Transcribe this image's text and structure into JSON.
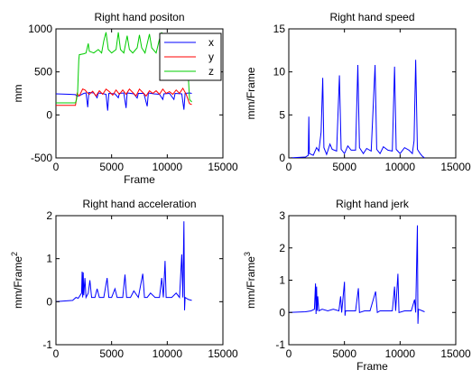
{
  "chart_data": [
    {
      "type": "line",
      "title": "Right hand positon",
      "xlabel": "Frame",
      "ylabel": "mm",
      "ylabel_sup": "",
      "xlim": [
        0,
        15000
      ],
      "ylim": [
        -500,
        1000
      ],
      "xticks": [
        "0",
        "5000",
        "10000",
        "15000"
      ],
      "yticks": [
        "-500",
        "0",
        "500",
        "1000"
      ],
      "grid": false,
      "legend": "top-right",
      "series": [
        {
          "name": "x",
          "color": "#0000ff",
          "points": [
            [
              0,
              245
            ],
            [
              1200,
              240
            ],
            [
              1750,
              235
            ],
            [
              1900,
              215
            ],
            [
              2200,
              230
            ],
            [
              2500,
              250
            ],
            [
              2700,
              255
            ],
            [
              2850,
              90
            ],
            [
              2950,
              260
            ],
            [
              3400,
              255
            ],
            [
              3700,
              200
            ],
            [
              3800,
              255
            ],
            [
              4100,
              250
            ],
            [
              4500,
              240
            ],
            [
              4650,
              50
            ],
            [
              4750,
              250
            ],
            [
              5300,
              245
            ],
            [
              5600,
              200
            ],
            [
              5700,
              250
            ],
            [
              6100,
              255
            ],
            [
              6300,
              80
            ],
            [
              6400,
              255
            ],
            [
              7000,
              245
            ],
            [
              7300,
              195
            ],
            [
              7400,
              250
            ],
            [
              7900,
              250
            ],
            [
              8200,
              100
            ],
            [
              8300,
              255
            ],
            [
              8800,
              245
            ],
            [
              9300,
              240
            ],
            [
              9600,
              180
            ],
            [
              9700,
              245
            ],
            [
              10200,
              250
            ],
            [
              10600,
              180
            ],
            [
              10700,
              250
            ],
            [
              11300,
              245
            ],
            [
              11500,
              60
            ],
            [
              11600,
              250
            ],
            [
              12000,
              255
            ],
            [
              12200,
              250
            ]
          ]
        },
        {
          "name": "y",
          "color": "#ff0000",
          "points": [
            [
              0,
              110
            ],
            [
              1750,
              110
            ],
            [
              1800,
              150
            ],
            [
              1900,
              250
            ],
            [
              2100,
              220
            ],
            [
              2400,
              300
            ],
            [
              2600,
              290
            ],
            [
              2800,
              260
            ],
            [
              3000,
              240
            ],
            [
              3300,
              275
            ],
            [
              3600,
              220
            ],
            [
              3900,
              280
            ],
            [
              4200,
              240
            ],
            [
              4500,
              300
            ],
            [
              4800,
              270
            ],
            [
              5100,
              230
            ],
            [
              5400,
              290
            ],
            [
              5700,
              240
            ],
            [
              6000,
              290
            ],
            [
              6300,
              240
            ],
            [
              6600,
              300
            ],
            [
              6900,
              260
            ],
            [
              7200,
              220
            ],
            [
              7500,
              300
            ],
            [
              7800,
              260
            ],
            [
              8100,
              220
            ],
            [
              8400,
              280
            ],
            [
              8700,
              250
            ],
            [
              9000,
              280
            ],
            [
              9300,
              240
            ],
            [
              9600,
              300
            ],
            [
              9900,
              250
            ],
            [
              10200,
              270
            ],
            [
              10500,
              240
            ],
            [
              10800,
              290
            ],
            [
              11100,
              250
            ],
            [
              11400,
              310
            ],
            [
              11700,
              240
            ],
            [
              12000,
              130
            ],
            [
              12200,
              120
            ]
          ]
        },
        {
          "name": "z",
          "color": "#00cc00",
          "points": [
            [
              0,
              140
            ],
            [
              1750,
              140
            ],
            [
              1850,
              180
            ],
            [
              1950,
              260
            ],
            [
              2050,
              640
            ],
            [
              2100,
              700
            ],
            [
              2500,
              710
            ],
            [
              2700,
              720
            ],
            [
              2900,
              830
            ],
            [
              3000,
              740
            ],
            [
              3400,
              720
            ],
            [
              3800,
              760
            ],
            [
              4100,
              720
            ],
            [
              4300,
              860
            ],
            [
              4500,
              960
            ],
            [
              4700,
              760
            ],
            [
              5000,
              720
            ],
            [
              5400,
              760
            ],
            [
              5600,
              960
            ],
            [
              5800,
              760
            ],
            [
              6100,
              720
            ],
            [
              6400,
              920
            ],
            [
              6600,
              760
            ],
            [
              6900,
              720
            ],
            [
              7300,
              780
            ],
            [
              7500,
              930
            ],
            [
              7700,
              780
            ],
            [
              8000,
              720
            ],
            [
              8400,
              940
            ],
            [
              8600,
              780
            ],
            [
              9000,
              720
            ],
            [
              9300,
              880
            ],
            [
              9500,
              960
            ],
            [
              9700,
              780
            ],
            [
              10100,
              760
            ],
            [
              10500,
              880
            ],
            [
              10700,
              780
            ],
            [
              11000,
              720
            ],
            [
              11400,
              760
            ],
            [
              11600,
              720
            ],
            [
              11900,
              420
            ],
            [
              12000,
              180
            ],
            [
              12200,
              150
            ]
          ]
        }
      ]
    },
    {
      "type": "line",
      "title": "Right hand speed",
      "xlabel": "",
      "ylabel": "mm/Frame",
      "ylabel_sup": "",
      "xlim": [
        0,
        15000
      ],
      "ylim": [
        0,
        15
      ],
      "xticks": [
        "0",
        "5000",
        "10000",
        "15000"
      ],
      "yticks": [
        "0",
        "5",
        "10",
        "15"
      ],
      "grid": false,
      "legend": "none",
      "series": [
        {
          "color": "#0000ff",
          "points": [
            [
              0,
              0
            ],
            [
              1500,
              0.1
            ],
            [
              1750,
              0.3
            ],
            [
              1800,
              4.8
            ],
            [
              1850,
              0.5
            ],
            [
              2200,
              0.3
            ],
            [
              2500,
              1.2
            ],
            [
              2700,
              0.8
            ],
            [
              2900,
              3
            ],
            [
              3050,
              9.3
            ],
            [
              3150,
              1.2
            ],
            [
              3400,
              0.4
            ],
            [
              3700,
              1.6
            ],
            [
              3900,
              1
            ],
            [
              4300,
              0.8
            ],
            [
              4550,
              9.6
            ],
            [
              4700,
              1
            ],
            [
              5000,
              0.5
            ],
            [
              5300,
              1.4
            ],
            [
              5600,
              0.9
            ],
            [
              6000,
              0.9
            ],
            [
              6200,
              10.8
            ],
            [
              6350,
              1.2
            ],
            [
              6700,
              0.5
            ],
            [
              7000,
              1.1
            ],
            [
              7400,
              0.8
            ],
            [
              7750,
              10.8
            ],
            [
              7900,
              1
            ],
            [
              8200,
              0.5
            ],
            [
              8500,
              1.3
            ],
            [
              8900,
              0.9
            ],
            [
              9300,
              0.8
            ],
            [
              9500,
              10.6
            ],
            [
              9650,
              1
            ],
            [
              10000,
              0.5
            ],
            [
              10400,
              1.2
            ],
            [
              10800,
              0.9
            ],
            [
              11100,
              0.5
            ],
            [
              11250,
              2
            ],
            [
              11400,
              11.4
            ],
            [
              11550,
              1
            ],
            [
              11800,
              0.5
            ],
            [
              12000,
              0.2
            ],
            [
              12200,
              0
            ]
          ]
        }
      ]
    },
    {
      "type": "line",
      "title": "Right hand acceleration",
      "xlabel": "",
      "ylabel": "mm/Frame",
      "ylabel_sup": "2",
      "xlim": [
        0,
        15000
      ],
      "ylim": [
        -1,
        2
      ],
      "xticks": [
        "0",
        "5000",
        "10000",
        "15000"
      ],
      "yticks": [
        "-1",
        "0",
        "1",
        "2"
      ],
      "grid": false,
      "legend": "none",
      "series": [
        {
          "color": "#0000ff",
          "points": [
            [
              0,
              0
            ],
            [
              1500,
              0.03
            ],
            [
              1800,
              0.1
            ],
            [
              2000,
              0.08
            ],
            [
              2300,
              0.2
            ],
            [
              2350,
              0.7
            ],
            [
              2400,
              0.1
            ],
            [
              2450,
              0.68
            ],
            [
              2500,
              0.15
            ],
            [
              2600,
              0.55
            ],
            [
              2700,
              0.1
            ],
            [
              2900,
              0.2
            ],
            [
              3050,
              0.5
            ],
            [
              3200,
              0.1
            ],
            [
              3500,
              0.1
            ],
            [
              3700,
              0.3
            ],
            [
              3900,
              0.1
            ],
            [
              4300,
              0.1
            ],
            [
              4600,
              0.55
            ],
            [
              4750,
              0.1
            ],
            [
              5000,
              0.1
            ],
            [
              5300,
              0.3
            ],
            [
              5500,
              0.1
            ],
            [
              6000,
              0.1
            ],
            [
              6200,
              0.63
            ],
            [
              6350,
              0.1
            ],
            [
              6700,
              0.1
            ],
            [
              7000,
              0.25
            ],
            [
              7400,
              0.1
            ],
            [
              7800,
              0.65
            ],
            [
              7950,
              0.1
            ],
            [
              8200,
              0.1
            ],
            [
              8500,
              0.2
            ],
            [
              8900,
              0.1
            ],
            [
              9300,
              0.1
            ],
            [
              9500,
              0.55
            ],
            [
              9650,
              0.1
            ],
            [
              9800,
              0.95
            ],
            [
              9900,
              0.1
            ],
            [
              10400,
              0.1
            ],
            [
              10800,
              0.2
            ],
            [
              11100,
              0.1
            ],
            [
              11300,
              1.1
            ],
            [
              11400,
              0.1
            ],
            [
              11500,
              1.87
            ],
            [
              11550,
              -0.2
            ],
            [
              11600,
              0.1
            ],
            [
              11900,
              0.05
            ],
            [
              12200,
              0.03
            ]
          ]
        }
      ]
    },
    {
      "type": "line",
      "title": "Right hand jerk",
      "xlabel": "Frame",
      "ylabel": "mm/Frame",
      "ylabel_sup": "3",
      "xlim": [
        0,
        15000
      ],
      "ylim": [
        -1,
        3
      ],
      "xticks": [
        "0",
        "5000",
        "10000",
        "15000"
      ],
      "yticks": [
        "-1",
        "0",
        "1",
        "2",
        "3"
      ],
      "grid": false,
      "legend": "none",
      "series": [
        {
          "color": "#0000ff",
          "points": [
            [
              0,
              0
            ],
            [
              1500,
              0.02
            ],
            [
              2000,
              0.05
            ],
            [
              2300,
              0.1
            ],
            [
              2400,
              0.9
            ],
            [
              2450,
              -0.05
            ],
            [
              2500,
              0.8
            ],
            [
              2550,
              0.05
            ],
            [
              2600,
              0.5
            ],
            [
              2700,
              0.05
            ],
            [
              3000,
              0.1
            ],
            [
              3500,
              0.05
            ],
            [
              4000,
              0.1
            ],
            [
              4500,
              0.05
            ],
            [
              4650,
              0.5
            ],
            [
              4750,
              0
            ],
            [
              5000,
              0.95
            ],
            [
              5050,
              -0.1
            ],
            [
              5100,
              0.05
            ],
            [
              5500,
              0.05
            ],
            [
              6000,
              0.05
            ],
            [
              6250,
              0.75
            ],
            [
              6350,
              0
            ],
            [
              6800,
              0.05
            ],
            [
              7300,
              0.05
            ],
            [
              7800,
              0.65
            ],
            [
              7950,
              0
            ],
            [
              8200,
              0.05
            ],
            [
              8800,
              0.05
            ],
            [
              9300,
              0.05
            ],
            [
              9500,
              0.8
            ],
            [
              9600,
              0.05
            ],
            [
              9800,
              1.2
            ],
            [
              9900,
              0
            ],
            [
              10400,
              0.05
            ],
            [
              11000,
              0.05
            ],
            [
              11300,
              0.4
            ],
            [
              11400,
              0
            ],
            [
              11550,
              2.7
            ],
            [
              11600,
              -0.35
            ],
            [
              11650,
              0.1
            ],
            [
              12000,
              0.05
            ],
            [
              12200,
              0.02
            ]
          ]
        }
      ]
    }
  ]
}
